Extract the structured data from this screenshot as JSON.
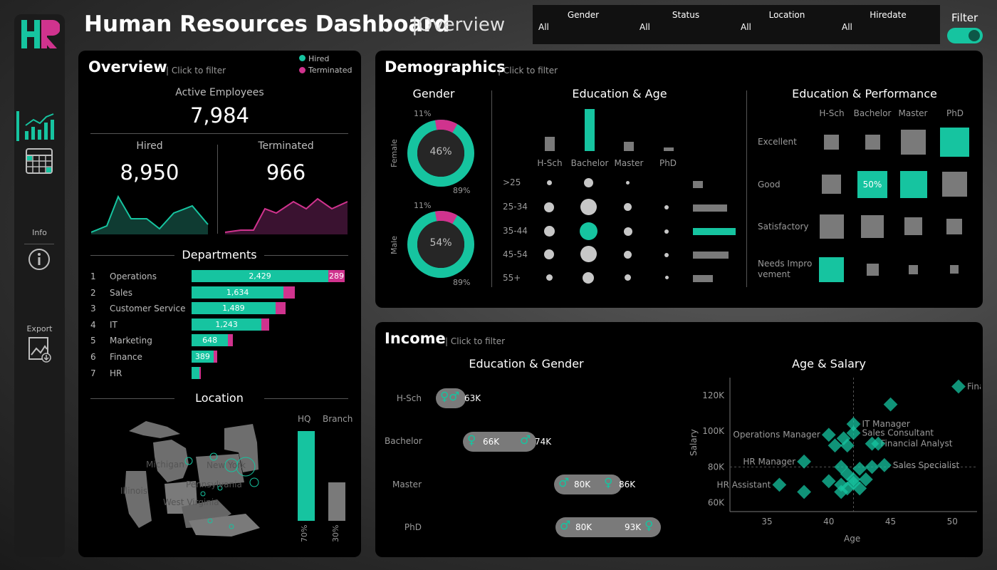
{
  "header": {
    "title": "Human Resources Dashboard",
    "subtitle": "|Overview",
    "filter_label": "Filter"
  },
  "sidebar": {
    "logo": "HR",
    "info_label": "Info",
    "export_label": "Export"
  },
  "filters": [
    {
      "name": "Gender",
      "value": "All"
    },
    {
      "name": "Status",
      "value": "All"
    },
    {
      "name": "Location",
      "value": "All"
    },
    {
      "name": "Hiredate",
      "value": "All"
    }
  ],
  "colors": {
    "hired": "#16c4a0",
    "terminated": "#d0338e",
    "neutral": "#7a7a7a"
  },
  "overview": {
    "title": "Overview",
    "hint": "| Click to filter",
    "legend_hired": "Hired",
    "legend_terminated": "Terminated",
    "active_label": "Active Employees",
    "active_value": "7,984",
    "hired_label": "Hired",
    "hired_value": "8,950",
    "terminated_label": "Terminated",
    "terminated_value": "966",
    "departments_title": "Departments",
    "location_title": "Location",
    "hq_label": "HQ",
    "branch_label": "Branch",
    "hq_pct": "70%",
    "branch_pct": "30%",
    "map_labels": {
      "michigan": "Michigan",
      "newyork": "New York",
      "illinois": "Illinois",
      "pennsylvania": "Pennsylvania",
      "westvirginia": "West Virginia"
    }
  },
  "departments": [
    {
      "rank": "1",
      "name": "Operations",
      "hired": "2,429",
      "terminated": "289",
      "h": 2429,
      "t": 289
    },
    {
      "rank": "2",
      "name": "Sales",
      "hired": "1,634",
      "terminated": "",
      "h": 1634,
      "t": 200
    },
    {
      "rank": "3",
      "name": "Customer Service",
      "hired": "1,489",
      "terminated": "",
      "h": 1489,
      "t": 180
    },
    {
      "rank": "4",
      "name": "IT",
      "hired": "1,243",
      "terminated": "",
      "h": 1243,
      "t": 140
    },
    {
      "rank": "5",
      "name": "Marketing",
      "hired": "648",
      "terminated": "",
      "h": 648,
      "t": 80
    },
    {
      "rank": "6",
      "name": "Finance",
      "hired": "389",
      "terminated": "",
      "h": 389,
      "t": 60
    },
    {
      "rank": "7",
      "name": "HR",
      "hired": "",
      "terminated": "",
      "h": 140,
      "t": 20
    }
  ],
  "demographics": {
    "title": "Demographics",
    "hint": "| Click to filter",
    "gender_title": "Gender",
    "edu_age_title": "Education & Age",
    "edu_perf_title": "Education & Performance",
    "female_label": "Female",
    "male_label": "Male",
    "female_pct": "46%",
    "male_pct": "54%",
    "female_top": "11%",
    "female_bottom": "89%",
    "male_top": "11%",
    "male_bottom": "89%",
    "edu_levels": [
      "H-Sch",
      "Bachelor",
      "Master",
      "PhD"
    ],
    "age_groups": [
      ">25",
      "25-34",
      "35-44",
      "45-54",
      "55+"
    ],
    "perf_levels": [
      "Excellent",
      "Good",
      "Satisfactory",
      "Needs Impro vement"
    ],
    "perf_highlight": "50%"
  },
  "income": {
    "title": "Income",
    "hint": "| Click to filter",
    "edu_gender_title": "Education & Gender",
    "age_salary_title": "Age & Salary",
    "rows": [
      {
        "edu": "H-Sch",
        "v1": "63K",
        "v2": ""
      },
      {
        "edu": "Bachelor",
        "v1": "66K",
        "v2": "74K"
      },
      {
        "edu": "Master",
        "v1": "80K",
        "v2": "86K"
      },
      {
        "edu": "PhD",
        "v1": "80K",
        "v2": "93K"
      }
    ],
    "ylabel": "Salary",
    "xlabel": "Age"
  },
  "chart_data": {
    "type": "scatter",
    "title": "Age & Salary",
    "xlabel": "Age",
    "ylabel": "Salary",
    "xlim": [
      32,
      52
    ],
    "ylim": [
      55000,
      130000
    ],
    "xticks": [
      "35",
      "40",
      "45",
      "50"
    ],
    "yticks": [
      "60K",
      "80K",
      "100K",
      "120K"
    ],
    "points": [
      {
        "x": 50.5,
        "y": 125000,
        "label": "Finance Manager"
      },
      {
        "x": 45,
        "y": 115000,
        "label": ""
      },
      {
        "x": 42,
        "y": 104000,
        "label": "IT Manager"
      },
      {
        "x": 40,
        "y": 98000,
        "label": "Operations Manager"
      },
      {
        "x": 42,
        "y": 99000,
        "label": "Sales Consultant"
      },
      {
        "x": 41.2,
        "y": 96000,
        "label": ""
      },
      {
        "x": 41.5,
        "y": 92000,
        "label": ""
      },
      {
        "x": 43.5,
        "y": 93000,
        "label": "Financial Analyst"
      },
      {
        "x": 44,
        "y": 93000,
        "label": ""
      },
      {
        "x": 40.5,
        "y": 92000,
        "label": ""
      },
      {
        "x": 38,
        "y": 83000,
        "label": "HR Manager"
      },
      {
        "x": 44.5,
        "y": 81000,
        "label": "Sales Specialist"
      },
      {
        "x": 43.5,
        "y": 80000,
        "label": ""
      },
      {
        "x": 41,
        "y": 80000,
        "label": ""
      },
      {
        "x": 42.5,
        "y": 79000,
        "label": ""
      },
      {
        "x": 41.5,
        "y": 76000,
        "label": ""
      },
      {
        "x": 42,
        "y": 73000,
        "label": ""
      },
      {
        "x": 43,
        "y": 73000,
        "label": ""
      },
      {
        "x": 40,
        "y": 72000,
        "label": ""
      },
      {
        "x": 41,
        "y": 70000,
        "label": ""
      },
      {
        "x": 42,
        "y": 71000,
        "label": ""
      },
      {
        "x": 41.5,
        "y": 68000,
        "label": ""
      },
      {
        "x": 42.5,
        "y": 68000,
        "label": ""
      },
      {
        "x": 41,
        "y": 66000,
        "label": ""
      },
      {
        "x": 38,
        "y": 66000,
        "label": ""
      },
      {
        "x": 36,
        "y": 70000,
        "label": "HR Assistant"
      }
    ]
  }
}
